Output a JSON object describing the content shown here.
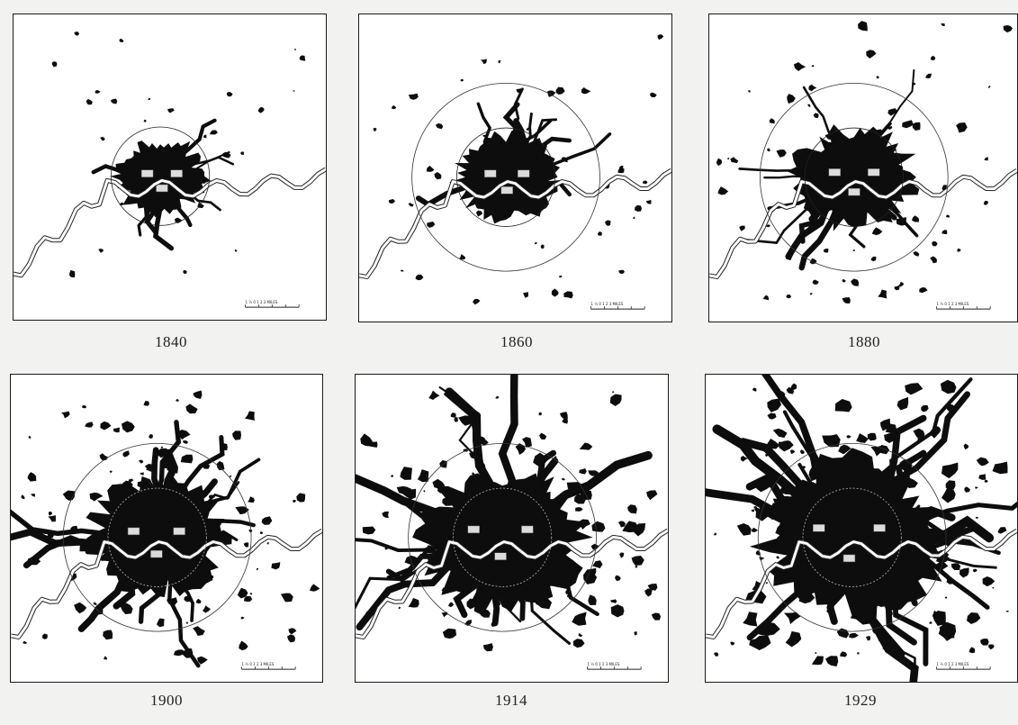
{
  "maps": [
    {
      "year": "1840",
      "density": 0.18,
      "spread": 0.55,
      "inner_circle": true,
      "outer_circle": false
    },
    {
      "year": "1860",
      "density": 0.28,
      "spread": 0.75,
      "inner_circle": true,
      "outer_circle": true
    },
    {
      "year": "1880",
      "density": 0.42,
      "spread": 0.85,
      "inner_circle": true,
      "outer_circle": true
    },
    {
      "year": "1900",
      "density": 0.58,
      "spread": 0.95,
      "inner_circle": true,
      "outer_circle": true
    },
    {
      "year": "1914",
      "density": 0.78,
      "spread": 1.0,
      "inner_circle": true,
      "outer_circle": true
    },
    {
      "year": "1929",
      "density": 0.95,
      "spread": 1.0,
      "inner_circle": true,
      "outer_circle": true
    }
  ],
  "colors": {
    "built_up": "#0d0d0d",
    "river": "#ffffff",
    "park": "#dcdcdc",
    "paper": "#ffffff"
  },
  "scale_label": "1 ½ 0 1 2 3 MILES"
}
